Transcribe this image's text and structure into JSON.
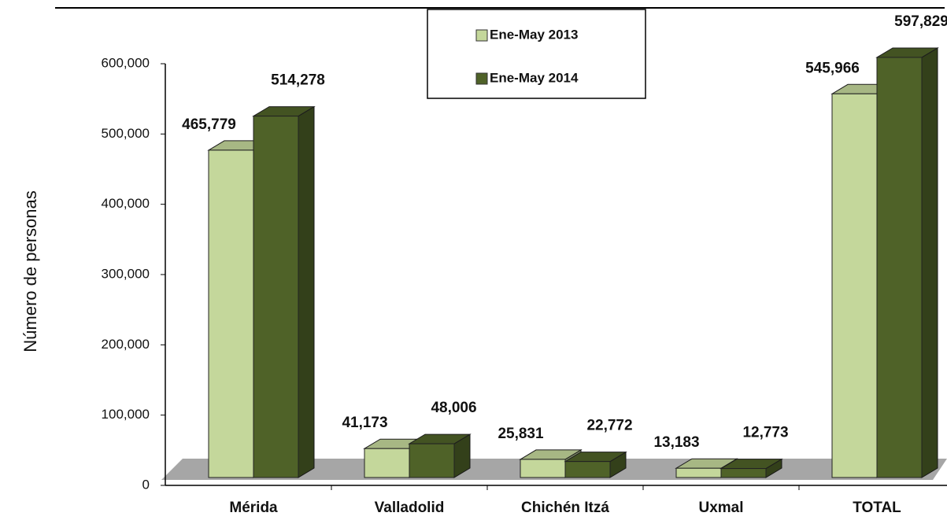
{
  "chart_data": {
    "type": "bar3d",
    "y_axis_label": "Número de personas",
    "categories": [
      "Mérida",
      "Valladolid",
      "Chichén Itzá",
      "Uxmal",
      "TOTAL"
    ],
    "series": [
      {
        "name": "Ene-May 2013",
        "color": "#c4d79b",
        "values": [
          465779,
          41173,
          25831,
          13183,
          545966
        ],
        "value_labels": [
          "465,779",
          "41,173",
          "25,831",
          "13,183",
          "545,966"
        ]
      },
      {
        "name": "Ene-May 2014",
        "color": "#4f6228",
        "values": [
          514278,
          48006,
          22772,
          12773,
          597829
        ],
        "value_labels": [
          "514,278",
          "48,006",
          "22,772",
          "12,773",
          "597,829"
        ]
      }
    ],
    "ylim": [
      0,
      600000
    ],
    "yticks": [
      0,
      {
        "value": 100000,
        "label": "100,000"
      },
      {
        "value": 200000,
        "label": "200,000"
      },
      {
        "value": 300000,
        "label": "300,000"
      },
      {
        "value": 400000,
        "label": "400,000"
      },
      {
        "value": 500000,
        "label": "500,000"
      },
      {
        "value": 600000,
        "label": "600,000"
      }
    ],
    "legend": "top"
  }
}
